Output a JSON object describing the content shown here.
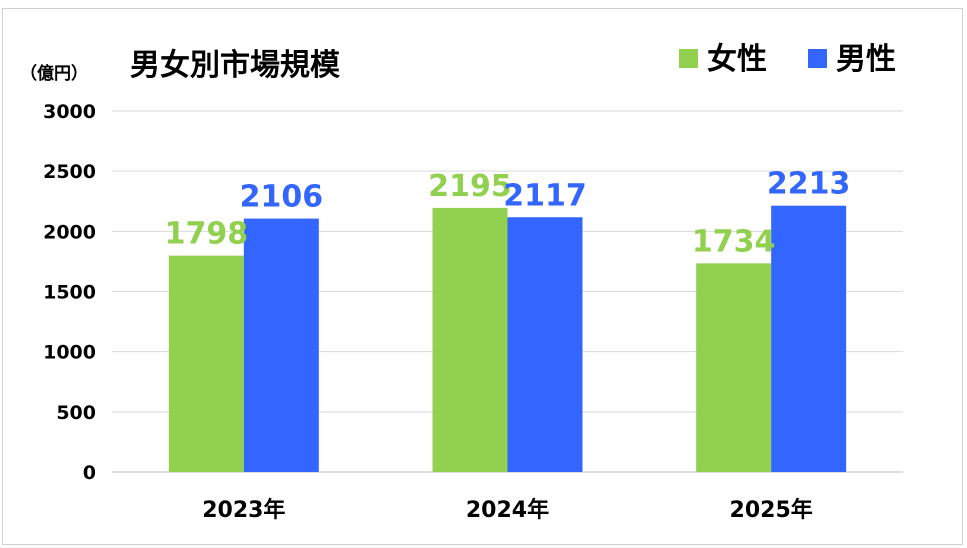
{
  "chart_data": {
    "type": "bar",
    "title": "男女別市場規模",
    "ylabel": "（億円）",
    "xlabel": "",
    "categories": [
      "2023年",
      "2024年",
      "2025年"
    ],
    "series": [
      {
        "name": "女性",
        "color": "#92d050",
        "values": [
          1798,
          2195,
          1734
        ]
      },
      {
        "name": "男性",
        "color": "#3366ff",
        "values": [
          2106,
          2117,
          2213
        ]
      }
    ],
    "ylim": [
      0,
      3000
    ],
    "yticks": [
      "0",
      "500",
      "1000",
      "1500",
      "2000",
      "2500",
      "3000"
    ],
    "grid": true,
    "legend_position": "top-right",
    "data_labels": true
  }
}
